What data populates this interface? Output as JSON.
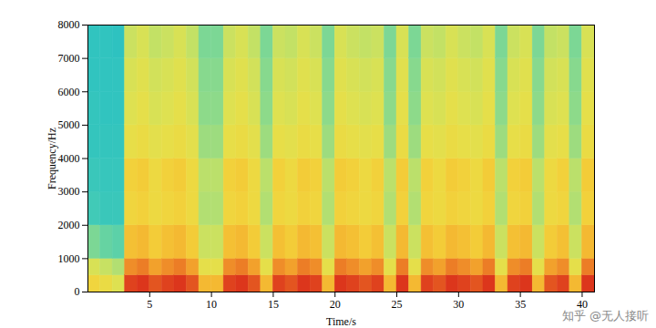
{
  "chart_data": {
    "type": "heatmap",
    "x_label": "Time/s",
    "y_label": "Frequency/Hz",
    "watermark": "知乎 @无人接听",
    "xlim": [
      0,
      41
    ],
    "xticks": [
      5,
      10,
      15,
      20,
      25,
      30,
      35,
      40
    ],
    "ylim": [
      0,
      8000
    ],
    "yticks": [
      0,
      1000,
      2000,
      3000,
      4000,
      5000,
      6000,
      7000,
      8000
    ],
    "clim": [
      0,
      1
    ],
    "time_bins": [
      0,
      1,
      2,
      3,
      4,
      5,
      6,
      7,
      8,
      9,
      10,
      11,
      12,
      13,
      14,
      15,
      16,
      17,
      18,
      19,
      20,
      21,
      22,
      23,
      24,
      25,
      26,
      27,
      28,
      29,
      30,
      31,
      32,
      33,
      34,
      35,
      36,
      37,
      38,
      39,
      40,
      41
    ],
    "frequency_bins": [
      0,
      500,
      1000,
      2000,
      3000,
      4000,
      5000,
      6000,
      7000,
      8000
    ],
    "cells": [
      [
        0.62,
        0.5,
        0.3,
        0.18,
        0.16,
        0.14,
        0.14,
        0.13,
        0.13
      ],
      [
        0.58,
        0.45,
        0.26,
        0.16,
        0.15,
        0.14,
        0.13,
        0.13,
        0.13
      ],
      [
        0.52,
        0.4,
        0.24,
        0.16,
        0.15,
        0.14,
        0.13,
        0.13,
        0.12
      ],
      [
        0.95,
        0.82,
        0.7,
        0.62,
        0.64,
        0.56,
        0.52,
        0.5,
        0.46
      ],
      [
        0.97,
        0.85,
        0.72,
        0.64,
        0.66,
        0.58,
        0.55,
        0.53,
        0.5
      ],
      [
        0.92,
        0.78,
        0.66,
        0.6,
        0.6,
        0.54,
        0.5,
        0.48,
        0.44
      ],
      [
        0.95,
        0.82,
        0.7,
        0.62,
        0.64,
        0.56,
        0.52,
        0.5,
        0.46
      ],
      [
        0.97,
        0.85,
        0.72,
        0.64,
        0.66,
        0.58,
        0.55,
        0.53,
        0.5
      ],
      [
        0.92,
        0.78,
        0.66,
        0.6,
        0.6,
        0.54,
        0.5,
        0.48,
        0.44
      ],
      [
        0.72,
        0.55,
        0.46,
        0.4,
        0.42,
        0.36,
        0.33,
        0.32,
        0.3
      ],
      [
        0.72,
        0.55,
        0.46,
        0.4,
        0.42,
        0.36,
        0.33,
        0.32,
        0.3
      ],
      [
        0.95,
        0.82,
        0.7,
        0.62,
        0.64,
        0.56,
        0.52,
        0.5,
        0.46
      ],
      [
        0.97,
        0.85,
        0.72,
        0.64,
        0.66,
        0.58,
        0.55,
        0.53,
        0.5
      ],
      [
        0.92,
        0.78,
        0.66,
        0.6,
        0.6,
        0.54,
        0.5,
        0.48,
        0.44
      ],
      [
        0.72,
        0.55,
        0.46,
        0.4,
        0.42,
        0.36,
        0.33,
        0.32,
        0.3
      ],
      [
        0.95,
        0.82,
        0.7,
        0.62,
        0.64,
        0.56,
        0.52,
        0.5,
        0.46
      ],
      [
        0.92,
        0.78,
        0.66,
        0.6,
        0.6,
        0.54,
        0.5,
        0.48,
        0.44
      ],
      [
        0.97,
        0.85,
        0.72,
        0.64,
        0.66,
        0.58,
        0.55,
        0.53,
        0.5
      ],
      [
        0.95,
        0.82,
        0.7,
        0.62,
        0.64,
        0.56,
        0.52,
        0.5,
        0.46
      ],
      [
        0.72,
        0.55,
        0.46,
        0.4,
        0.42,
        0.36,
        0.33,
        0.32,
        0.3
      ],
      [
        0.97,
        0.85,
        0.72,
        0.64,
        0.66,
        0.58,
        0.55,
        0.53,
        0.5
      ],
      [
        0.95,
        0.82,
        0.7,
        0.62,
        0.64,
        0.56,
        0.52,
        0.5,
        0.46
      ],
      [
        0.92,
        0.78,
        0.66,
        0.6,
        0.6,
        0.54,
        0.5,
        0.48,
        0.44
      ],
      [
        0.95,
        0.82,
        0.7,
        0.62,
        0.64,
        0.56,
        0.52,
        0.5,
        0.46
      ],
      [
        0.72,
        0.55,
        0.46,
        0.4,
        0.42,
        0.36,
        0.33,
        0.32,
        0.3
      ],
      [
        0.97,
        0.85,
        0.72,
        0.64,
        0.66,
        0.58,
        0.55,
        0.53,
        0.5
      ],
      [
        0.72,
        0.55,
        0.46,
        0.4,
        0.42,
        0.36,
        0.33,
        0.32,
        0.3
      ],
      [
        0.95,
        0.82,
        0.7,
        0.62,
        0.64,
        0.56,
        0.52,
        0.5,
        0.46
      ],
      [
        0.92,
        0.78,
        0.66,
        0.6,
        0.6,
        0.54,
        0.5,
        0.48,
        0.44
      ],
      [
        0.97,
        0.85,
        0.72,
        0.64,
        0.66,
        0.58,
        0.55,
        0.53,
        0.5
      ],
      [
        0.95,
        0.82,
        0.7,
        0.62,
        0.64,
        0.56,
        0.52,
        0.5,
        0.46
      ],
      [
        0.92,
        0.78,
        0.66,
        0.6,
        0.6,
        0.54,
        0.5,
        0.48,
        0.44
      ],
      [
        0.97,
        0.85,
        0.72,
        0.64,
        0.66,
        0.58,
        0.55,
        0.53,
        0.5
      ],
      [
        0.72,
        0.55,
        0.46,
        0.4,
        0.42,
        0.36,
        0.33,
        0.32,
        0.3
      ],
      [
        0.95,
        0.82,
        0.7,
        0.62,
        0.64,
        0.56,
        0.52,
        0.5,
        0.46
      ],
      [
        0.97,
        0.85,
        0.72,
        0.64,
        0.66,
        0.58,
        0.55,
        0.53,
        0.5
      ],
      [
        0.72,
        0.55,
        0.46,
        0.4,
        0.42,
        0.36,
        0.33,
        0.32,
        0.3
      ],
      [
        0.92,
        0.78,
        0.66,
        0.6,
        0.6,
        0.54,
        0.5,
        0.48,
        0.44
      ],
      [
        0.95,
        0.82,
        0.7,
        0.62,
        0.64,
        0.56,
        0.52,
        0.5,
        0.46
      ],
      [
        0.72,
        0.55,
        0.46,
        0.4,
        0.42,
        0.36,
        0.33,
        0.32,
        0.3
      ],
      [
        0.97,
        0.85,
        0.72,
        0.64,
        0.66,
        0.58,
        0.55,
        0.53,
        0.5
      ]
    ]
  }
}
